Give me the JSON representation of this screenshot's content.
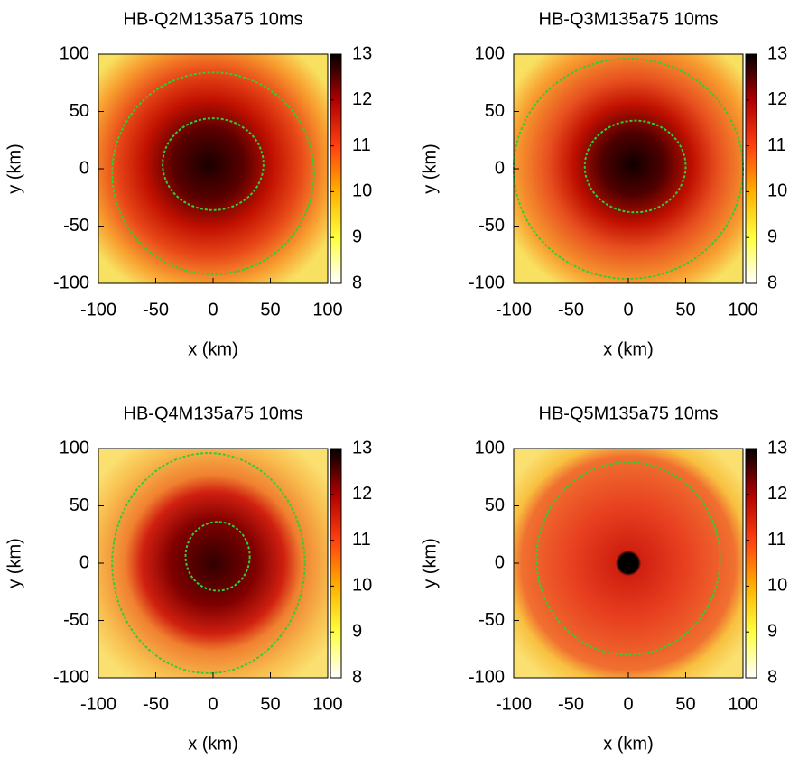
{
  "chart_data": [
    {
      "type": "heatmap",
      "title": "HB-Q2M135a75 10ms",
      "xlabel": "x (km)",
      "ylabel": "y (km)",
      "xlim": [
        -100,
        100
      ],
      "ylim": [
        -100,
        100
      ],
      "xticks": [
        -100,
        -50,
        0,
        50,
        100
      ],
      "yticks": [
        -100,
        -50,
        0,
        50,
        100
      ],
      "clim": [
        8,
        13
      ],
      "cticks": [
        8,
        9,
        10,
        11,
        12,
        13
      ],
      "colormap": [
        "#ffffff",
        "#ffff40",
        "#ffb000",
        "#ff4010",
        "#b00000",
        "#000000"
      ],
      "contour_color": "#33cc33"
    },
    {
      "type": "heatmap",
      "title": "HB-Q3M135a75 10ms",
      "xlabel": "x (km)",
      "ylabel": "y (km)",
      "xlim": [
        -100,
        100
      ],
      "ylim": [
        -100,
        100
      ],
      "xticks": [
        -100,
        -50,
        0,
        50,
        100
      ],
      "yticks": [
        -100,
        -50,
        0,
        50,
        100
      ],
      "clim": [
        8,
        13
      ],
      "cticks": [
        8,
        9,
        10,
        11,
        12,
        13
      ],
      "colormap": [
        "#ffffff",
        "#ffff40",
        "#ffb000",
        "#ff4010",
        "#b00000",
        "#000000"
      ],
      "contour_color": "#33cc33"
    },
    {
      "type": "heatmap",
      "title": "HB-Q4M135a75 10ms",
      "xlabel": "x (km)",
      "ylabel": "y (km)",
      "xlim": [
        -100,
        100
      ],
      "ylim": [
        -100,
        100
      ],
      "xticks": [
        -100,
        -50,
        0,
        50,
        100
      ],
      "yticks": [
        -100,
        -50,
        0,
        50,
        100
      ],
      "clim": [
        8,
        13
      ],
      "cticks": [
        8,
        9,
        10,
        11,
        12,
        13
      ],
      "colormap": [
        "#ffffff",
        "#ffff40",
        "#ffb000",
        "#ff4010",
        "#b00000",
        "#000000"
      ],
      "contour_color": "#33cc33"
    },
    {
      "type": "heatmap",
      "title": "HB-Q5M135a75 10ms",
      "xlabel": "x (km)",
      "ylabel": "y (km)",
      "xlim": [
        -100,
        100
      ],
      "ylim": [
        -100,
        100
      ],
      "xticks": [
        -100,
        -50,
        0,
        50,
        100
      ],
      "yticks": [
        -100,
        -50,
        0,
        50,
        100
      ],
      "clim": [
        8,
        13
      ],
      "cticks": [
        8,
        9,
        10,
        11,
        12,
        13
      ],
      "colormap": [
        "#ffffff",
        "#ffff40",
        "#ffb000",
        "#ff4010",
        "#b00000",
        "#000000"
      ],
      "contour_color": "#33cc33"
    }
  ]
}
